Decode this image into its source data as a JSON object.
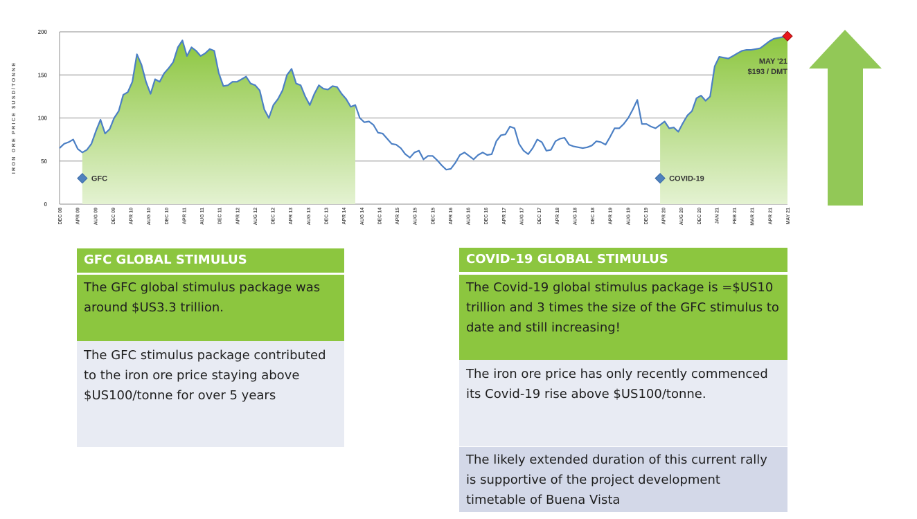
{
  "chart_data": {
    "type": "area",
    "ylabel": "IRON ORE PRICE $USD/TONNE",
    "ylim": [
      0,
      200
    ],
    "y_ticks": [
      0,
      50,
      100,
      150,
      200
    ],
    "grid": true,
    "x_tick_labels": [
      "DEC 08",
      "APR 09",
      "AUG 09",
      "DEC 09",
      "APR 10",
      "AUG 10",
      "DEC 10",
      "APR 11",
      "AUG 11",
      "DEC 11",
      "APR 12",
      "AUG 12",
      "DEC 12",
      "APR 13",
      "AUG 13",
      "DEC 13",
      "APR 14",
      "AUG 14",
      "DEC 14",
      "APR 15",
      "AUG 15",
      "DEC 15",
      "APR 16",
      "AUG 16",
      "DEC 16",
      "APR 17",
      "AUG 17",
      "DEC 17",
      "APR 18",
      "AUG 18",
      "DEC 18",
      "APR 19",
      "AUG 19",
      "DEC 19",
      "APR 20",
      "AUG 20",
      "DEC 20",
      "JAN 21",
      "FEB 21",
      "MAR 21",
      "APR 21",
      "MAY 21"
    ],
    "series": [
      {
        "values": [
          65,
          70,
          72,
          75,
          64,
          60,
          63,
          70,
          85,
          98,
          82,
          87,
          100,
          108,
          127,
          130,
          142,
          174,
          162,
          142,
          128,
          145,
          142,
          152,
          158,
          165,
          182,
          190,
          172,
          182,
          178,
          172,
          175,
          180,
          178,
          152,
          137,
          138,
          142,
          142,
          145,
          148,
          140,
          138,
          132,
          110,
          100,
          115,
          122,
          132,
          150,
          157,
          140,
          138,
          125,
          115,
          128,
          138,
          134,
          133,
          137,
          136,
          128,
          122,
          113,
          115,
          100,
          95,
          96,
          92,
          83,
          82,
          76,
          70,
          69,
          65,
          58,
          54,
          60,
          62,
          52,
          56,
          56,
          51,
          45,
          40,
          41,
          48,
          57,
          60,
          56,
          52,
          57,
          60,
          57,
          58,
          73,
          80,
          81,
          90,
          88,
          70,
          62,
          58,
          65,
          75,
          72,
          62,
          63,
          73,
          76,
          77,
          69,
          67,
          66,
          65,
          66,
          68,
          73,
          72,
          69,
          78,
          88,
          88,
          93,
          100,
          110,
          121,
          93,
          93,
          90,
          88,
          92,
          96,
          88,
          89,
          84,
          94,
          103,
          108,
          123,
          126,
          120,
          125,
          160,
          171,
          170,
          169,
          172,
          175,
          178,
          179,
          179,
          180,
          181,
          185,
          189,
          192,
          193,
          194,
          195
        ],
        "fills": [
          {
            "name": "GFC",
            "from": 5,
            "to": 65
          },
          {
            "name": "COVID-19",
            "from": 132,
            "to": 160
          }
        ]
      }
    ],
    "markers": [
      {
        "label": "GFC",
        "at_index": 5,
        "y": 30
      },
      {
        "label": "COVID-19",
        "at_index": 132,
        "y": 30
      }
    ],
    "callout": {
      "line1": "MAY '21",
      "line2": "$193 / DMT"
    }
  },
  "colors": {
    "line": "#4b7fc4",
    "fill_top": "#8cc63f",
    "fill_bottom": "#e4f2d2",
    "marker": "#4f81bd",
    "end_point": "#e8171b",
    "arrow": "#92c857",
    "header_green": "#8cc63f",
    "light_box": "#e8ebf3",
    "lavender_box": "#d3d8e8"
  },
  "gfc_panel": {
    "header": "GFC GLOBAL STIMULUS",
    "body1": "The GFC global stimulus package was around $US3.3 trillion.",
    "body2": "The GFC stimulus package contributed to the iron ore price staying above $US100/tonne for over 5 years"
  },
  "covid_panel": {
    "header": "COVID-19 GLOBAL STIMULUS",
    "body1": "The Covid-19 global stimulus package is =$US10 trillion and 3 times the size of the GFC stimulus to date and still increasing!",
    "body2": "The iron ore price has only recently commenced its Covid-19 rise above $US100/tonne.",
    "body3": "The likely extended duration of this current rally is supportive of the project development timetable of Buena Vista"
  },
  "arrow_icon": "up-arrow-icon"
}
